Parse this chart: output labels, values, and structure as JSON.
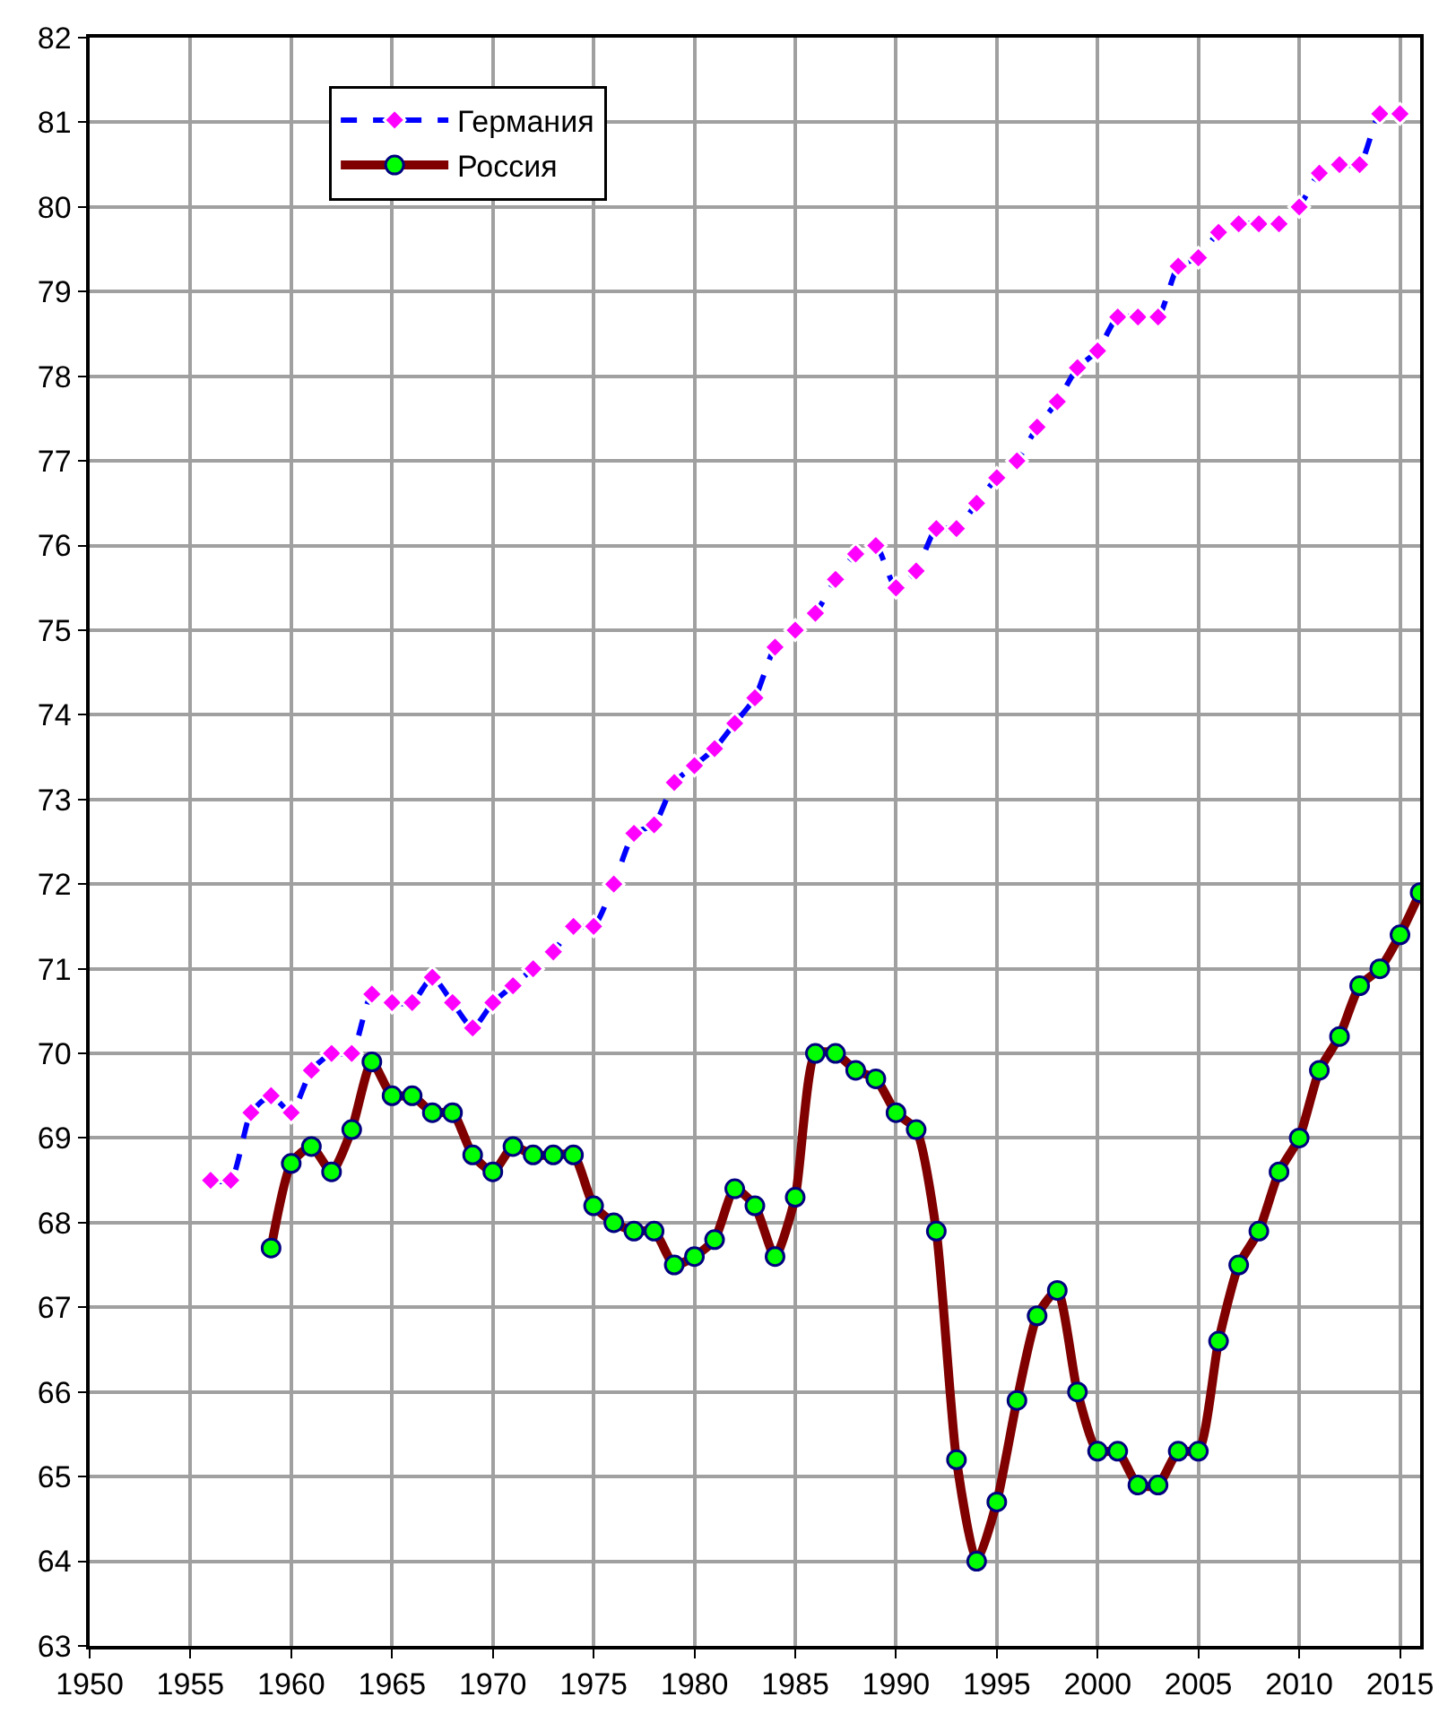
{
  "chart_data": {
    "type": "line",
    "x": [
      1956,
      1957,
      1958,
      1959,
      1960,
      1961,
      1962,
      1963,
      1964,
      1965,
      1966,
      1967,
      1968,
      1969,
      1970,
      1971,
      1972,
      1973,
      1974,
      1975,
      1976,
      1977,
      1978,
      1979,
      1980,
      1981,
      1982,
      1983,
      1984,
      1985,
      1986,
      1987,
      1988,
      1989,
      1990,
      1991,
      1992,
      1993,
      1994,
      1995,
      1996,
      1997,
      1998,
      1999,
      2000,
      2001,
      2002,
      2003,
      2004,
      2005,
      2006,
      2007,
      2008,
      2009,
      2010,
      2011,
      2012,
      2013,
      2014,
      2015,
      2016
    ],
    "series": [
      {
        "name": "Германия",
        "color": "#0000ff",
        "marker": "diamond",
        "line_style": "dashed",
        "values": [
          68.5,
          68.5,
          69.3,
          69.5,
          69.3,
          69.8,
          70.0,
          70.0,
          70.7,
          70.6,
          70.6,
          70.9,
          70.6,
          70.3,
          70.6,
          70.8,
          71.0,
          71.2,
          71.5,
          71.5,
          72.0,
          72.6,
          72.7,
          73.2,
          73.4,
          73.6,
          73.9,
          74.2,
          74.8,
          75.0,
          75.2,
          75.6,
          75.9,
          76.0,
          75.5,
          75.7,
          76.2,
          76.2,
          76.5,
          76.8,
          77.0,
          77.4,
          77.7,
          78.1,
          78.3,
          78.7,
          78.7,
          78.7,
          79.3,
          79.4,
          79.7,
          79.8,
          79.8,
          79.8,
          80.0,
          80.4,
          80.5,
          80.5,
          81.1,
          81.1,
          null
        ]
      },
      {
        "name": "Россия",
        "color": "#800000",
        "marker": "circle",
        "line_style": "solid",
        "values": [
          null,
          null,
          null,
          67.7,
          68.7,
          68.9,
          68.6,
          69.1,
          69.9,
          69.5,
          69.5,
          69.3,
          69.3,
          68.8,
          68.6,
          68.9,
          68.8,
          68.8,
          68.8,
          68.2,
          68.0,
          67.9,
          67.9,
          67.5,
          67.6,
          67.8,
          68.4,
          68.2,
          67.6,
          68.3,
          70.0,
          70.0,
          69.8,
          69.7,
          69.3,
          69.1,
          67.9,
          65.2,
          64.0,
          64.7,
          65.9,
          66.9,
          67.2,
          66.0,
          65.3,
          65.3,
          64.9,
          64.9,
          65.3,
          65.3,
          66.6,
          67.5,
          67.9,
          68.6,
          69.0,
          69.8,
          70.2,
          70.8,
          71.0,
          71.4,
          71.9
        ]
      }
    ],
    "xlim": [
      1950,
      2016
    ],
    "xticks": [
      1950,
      1955,
      1960,
      1965,
      1970,
      1975,
      1980,
      1985,
      1990,
      1995,
      2000,
      2005,
      2010,
      2015
    ],
    "ylim": [
      63,
      82
    ],
    "yticks": [
      63,
      64,
      65,
      66,
      67,
      68,
      69,
      70,
      71,
      72,
      73,
      74,
      75,
      76,
      77,
      78,
      79,
      80,
      81,
      82
    ],
    "grid": true,
    "legend": "top left"
  }
}
